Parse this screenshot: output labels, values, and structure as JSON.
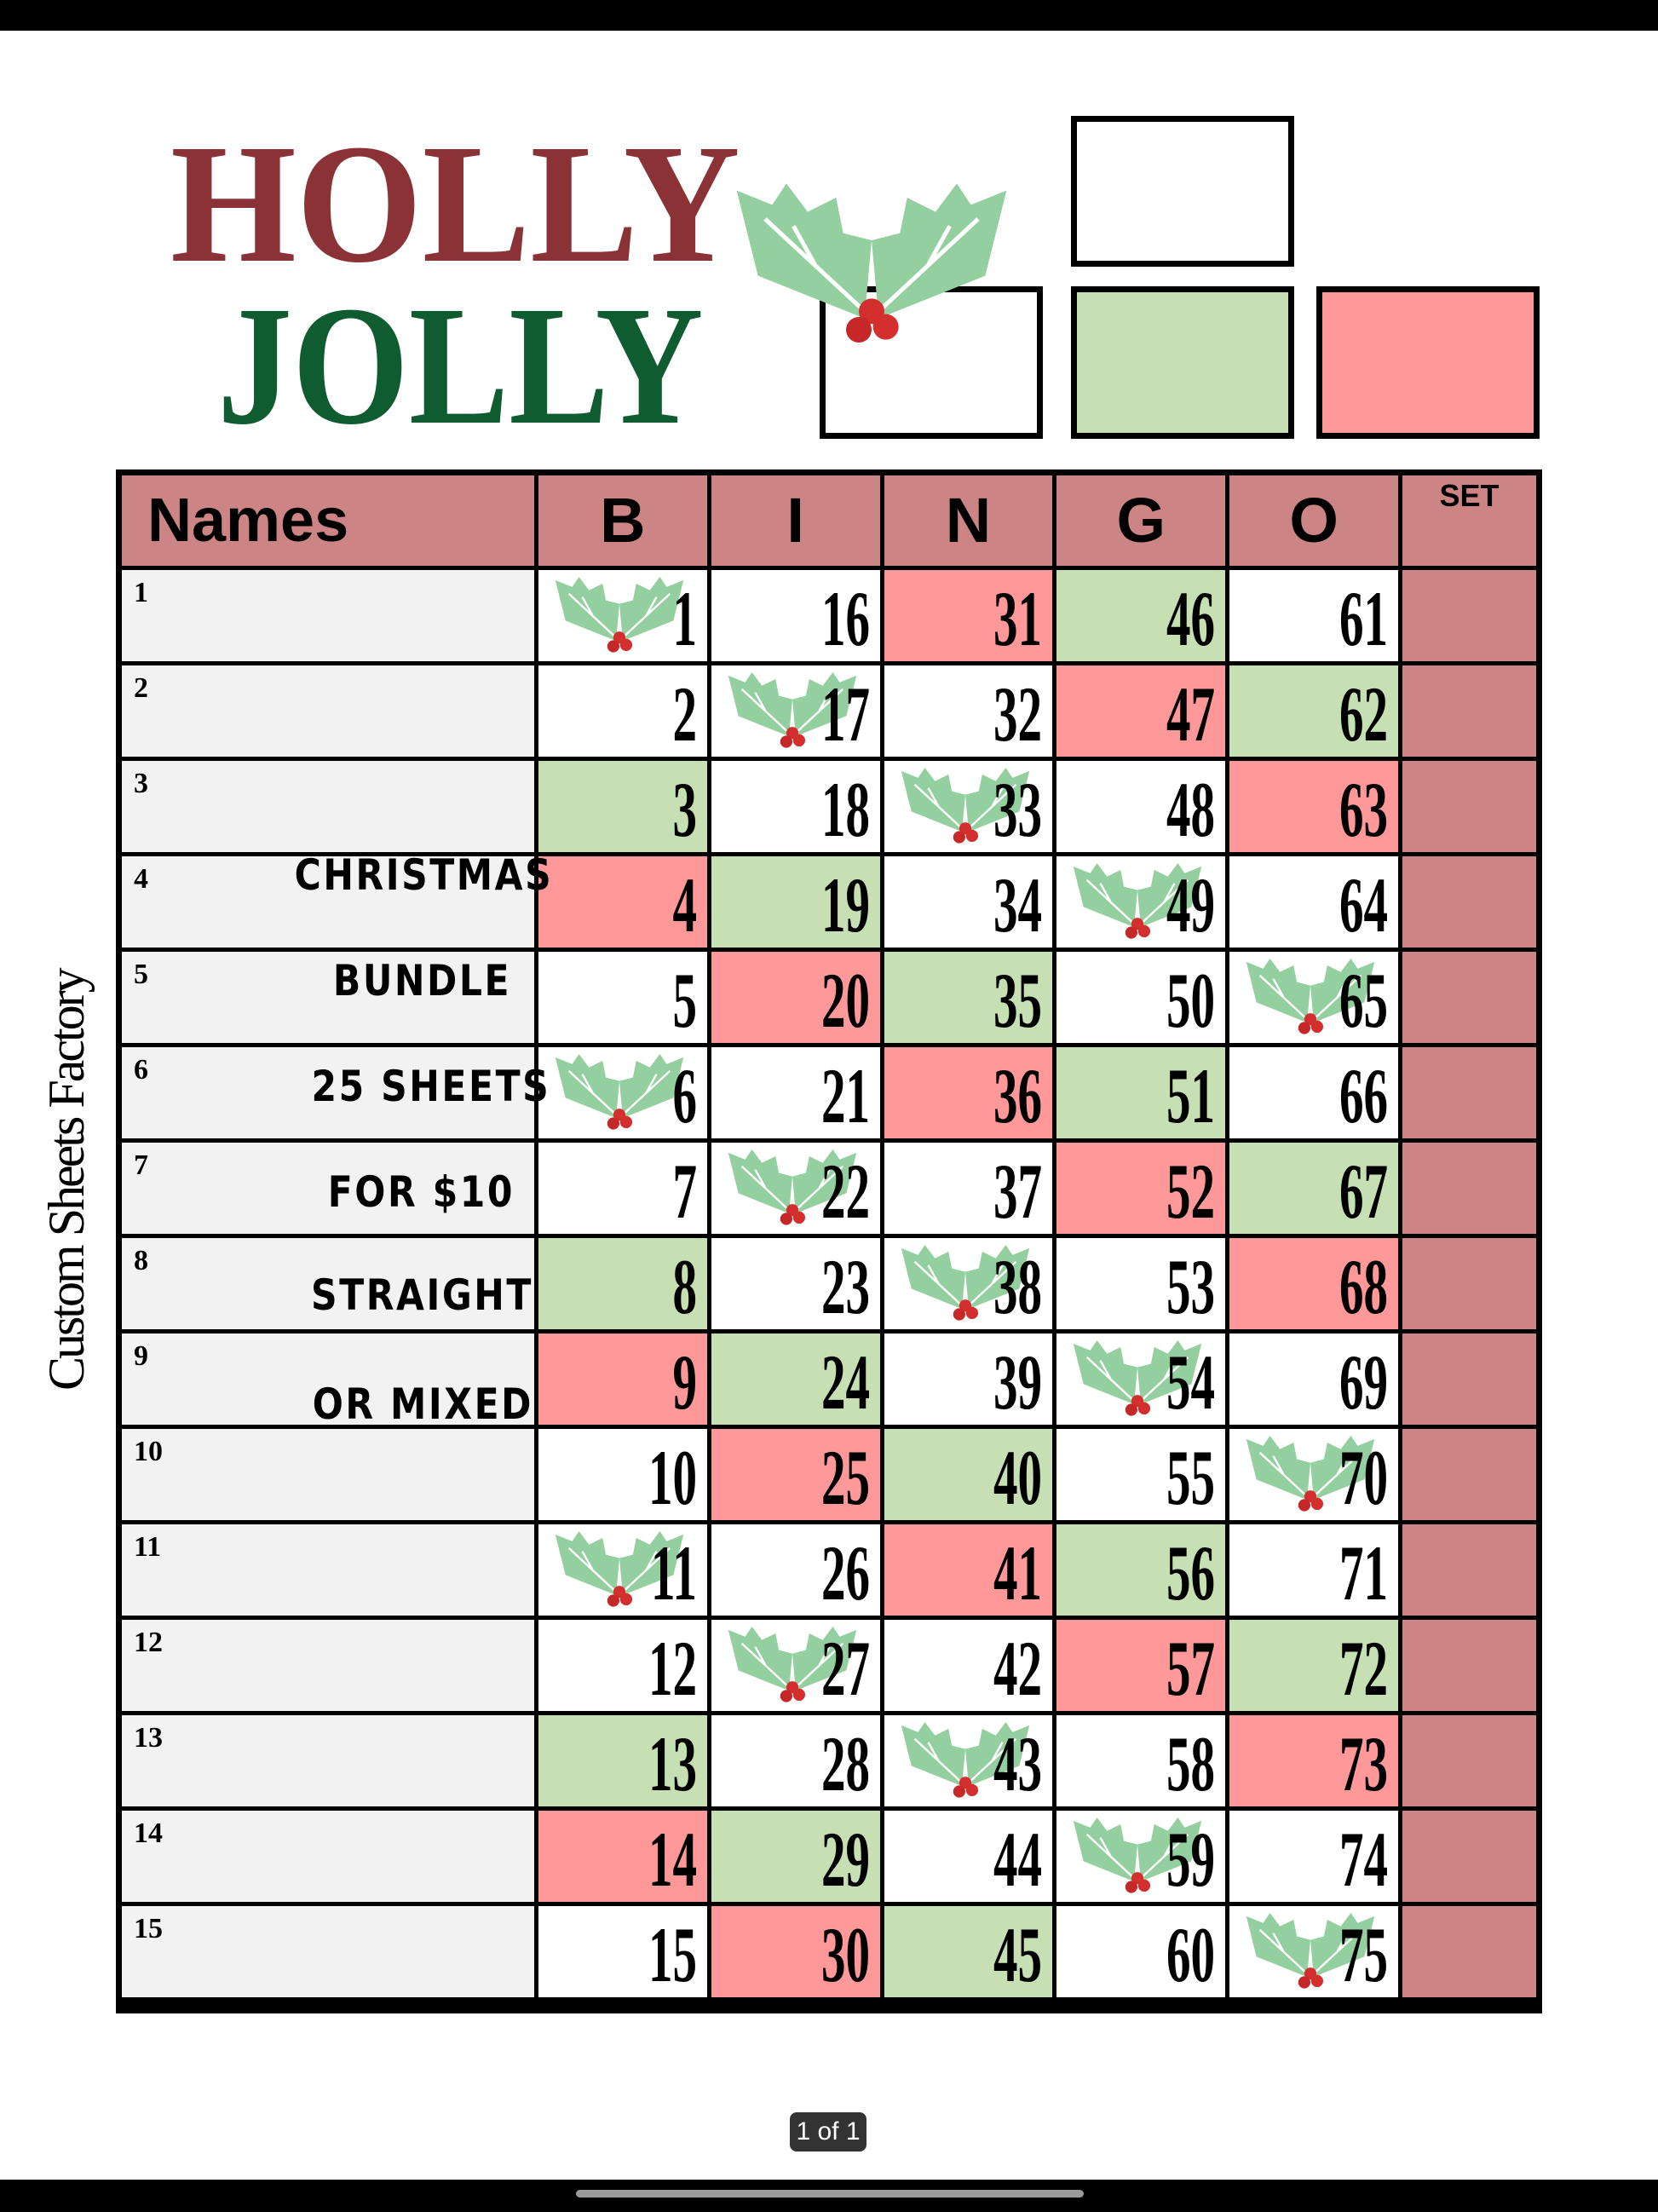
{
  "logo": {
    "line1": "HOLLY",
    "line2": "JOLLY"
  },
  "side_text": "Custom Sheets Factory",
  "colors": {
    "header": "#cc8484",
    "red": "#ff9999",
    "green": "#c6e0b4",
    "names_bg": "#f2f2f2",
    "logo_red": "#8b3236",
    "logo_green": "#0e5c2f"
  },
  "header": {
    "names": "Names",
    "columns": [
      "B",
      "I",
      "N",
      "G",
      "O"
    ],
    "set": "SET"
  },
  "promo": [
    "CHRISTMAS",
    "BUNDLE",
    "25 SHEETS",
    "FOR $10",
    "STRAIGHT",
    "OR MIXED"
  ],
  "rows": [
    {
      "label": "1",
      "numbers": [
        "1",
        "16",
        "31",
        "46",
        "61"
      ],
      "fills": [
        "holly",
        "white",
        "red",
        "green",
        "white"
      ]
    },
    {
      "label": "2",
      "numbers": [
        "2",
        "17",
        "32",
        "47",
        "62"
      ],
      "fills": [
        "white",
        "holly",
        "white",
        "red",
        "green"
      ]
    },
    {
      "label": "3",
      "numbers": [
        "3",
        "18",
        "33",
        "48",
        "63"
      ],
      "fills": [
        "green",
        "white",
        "holly",
        "white",
        "red"
      ]
    },
    {
      "label": "4",
      "numbers": [
        "4",
        "19",
        "34",
        "49",
        "64"
      ],
      "fills": [
        "red",
        "green",
        "white",
        "holly",
        "white"
      ]
    },
    {
      "label": "5",
      "numbers": [
        "5",
        "20",
        "35",
        "50",
        "65"
      ],
      "fills": [
        "white",
        "red",
        "green",
        "white",
        "holly"
      ]
    },
    {
      "label": "6",
      "numbers": [
        "6",
        "21",
        "36",
        "51",
        "66"
      ],
      "fills": [
        "holly",
        "white",
        "red",
        "green",
        "white"
      ]
    },
    {
      "label": "7",
      "numbers": [
        "7",
        "22",
        "37",
        "52",
        "67"
      ],
      "fills": [
        "white",
        "holly",
        "white",
        "red",
        "green"
      ]
    },
    {
      "label": "8",
      "numbers": [
        "8",
        "23",
        "38",
        "53",
        "68"
      ],
      "fills": [
        "green",
        "white",
        "holly",
        "white",
        "red"
      ]
    },
    {
      "label": "9",
      "numbers": [
        "9",
        "24",
        "39",
        "54",
        "69"
      ],
      "fills": [
        "red",
        "green",
        "white",
        "holly",
        "white"
      ]
    },
    {
      "label": "10",
      "numbers": [
        "10",
        "25",
        "40",
        "55",
        "70"
      ],
      "fills": [
        "white",
        "red",
        "green",
        "white",
        "holly"
      ]
    },
    {
      "label": "11",
      "numbers": [
        "11",
        "26",
        "41",
        "56",
        "71"
      ],
      "fills": [
        "holly",
        "white",
        "red",
        "green",
        "white"
      ]
    },
    {
      "label": "12",
      "numbers": [
        "12",
        "27",
        "42",
        "57",
        "72"
      ],
      "fills": [
        "white",
        "holly",
        "white",
        "red",
        "green"
      ]
    },
    {
      "label": "13",
      "numbers": [
        "13",
        "28",
        "43",
        "58",
        "73"
      ],
      "fills": [
        "green",
        "white",
        "holly",
        "white",
        "red"
      ]
    },
    {
      "label": "14",
      "numbers": [
        "14",
        "29",
        "44",
        "59",
        "74"
      ],
      "fills": [
        "red",
        "green",
        "white",
        "holly",
        "white"
      ]
    },
    {
      "label": "15",
      "numbers": [
        "15",
        "30",
        "45",
        "60",
        "75"
      ],
      "fills": [
        "white",
        "red",
        "green",
        "white",
        "holly"
      ]
    }
  ],
  "pager": "1 of 1"
}
